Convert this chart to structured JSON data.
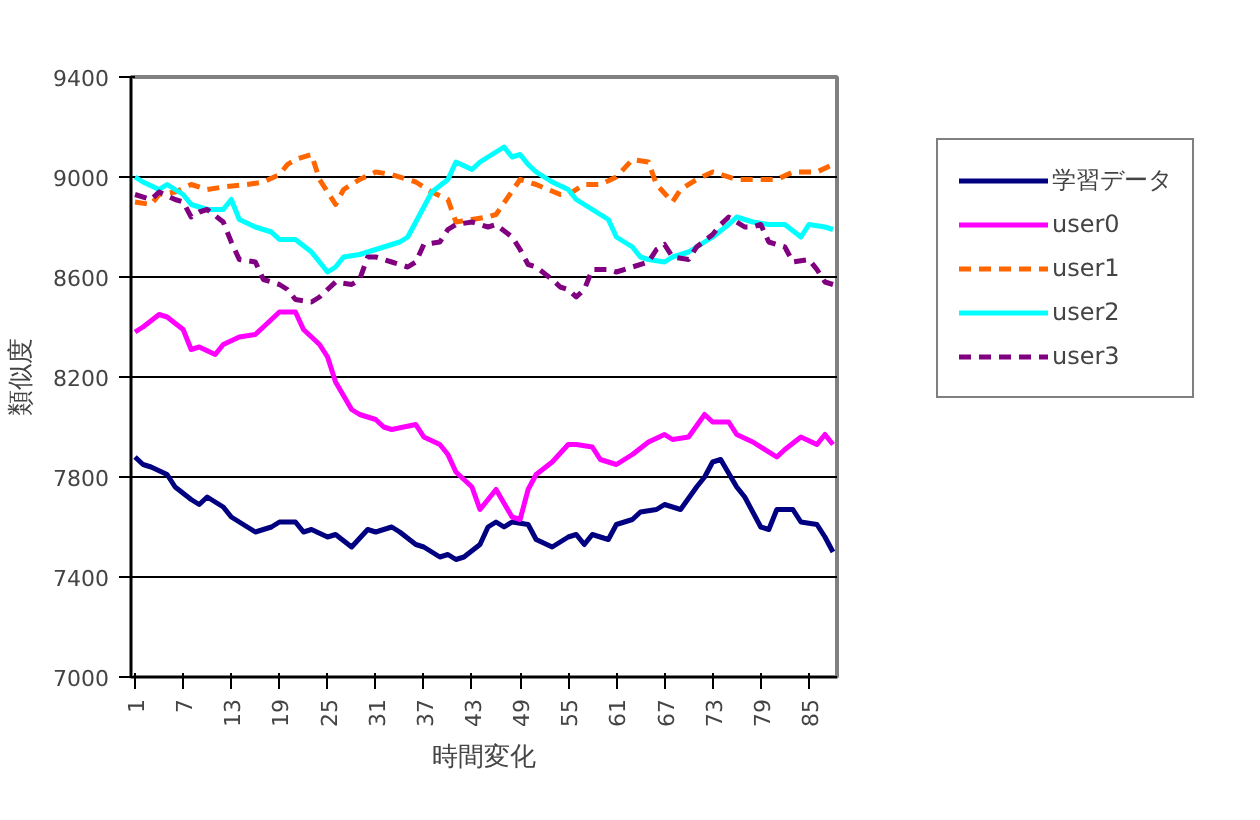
{
  "chart_data": {
    "type": "line",
    "xlabel": "時間変化",
    "ylabel": "類似度",
    "xlim": [
      0.5,
      88.5
    ],
    "xticks": [
      1,
      7,
      13,
      19,
      25,
      31,
      37,
      43,
      49,
      55,
      61,
      67,
      73,
      79,
      85
    ],
    "ylim": [
      7000,
      9400
    ],
    "yticks": [
      7000,
      7400,
      7800,
      8200,
      8600,
      9000,
      9400
    ],
    "grid": "y",
    "legend": "right",
    "series": [
      {
        "name": "学習データ",
        "color": "#000080",
        "line_style": "solid",
        "x": [
          1,
          2,
          3,
          5,
          6,
          8,
          9,
          10,
          12,
          13,
          15,
          16,
          18,
          19,
          21,
          22,
          23,
          25,
          26,
          28,
          30,
          31,
          33,
          34,
          36,
          37,
          39,
          40,
          41,
          42,
          44,
          45,
          46,
          47,
          48,
          50,
          51,
          53,
          55,
          56,
          57,
          58,
          60,
          61,
          63,
          64,
          66,
          67,
          69,
          71,
          72,
          73,
          74,
          76,
          77,
          79,
          80,
          81,
          83,
          84,
          86,
          87,
          88
        ],
        "values": [
          7880,
          7850,
          7840,
          7810,
          7760,
          7710,
          7690,
          7720,
          7680,
          7640,
          7600,
          7580,
          7600,
          7620,
          7620,
          7580,
          7590,
          7560,
          7570,
          7520,
          7590,
          7580,
          7600,
          7580,
          7530,
          7520,
          7480,
          7490,
          7470,
          7480,
          7530,
          7600,
          7620,
          7600,
          7620,
          7610,
          7550,
          7520,
          7560,
          7570,
          7530,
          7570,
          7550,
          7610,
          7630,
          7660,
          7670,
          7690,
          7670,
          7760,
          7800,
          7860,
          7870,
          7760,
          7720,
          7600,
          7590,
          7670,
          7670,
          7620,
          7610,
          7560,
          7500
        ]
      },
      {
        "name": "user0",
        "color": "#ff00ff",
        "line_style": "solid",
        "x": [
          1,
          2,
          4,
          5,
          7,
          8,
          9,
          11,
          12,
          14,
          16,
          17,
          19,
          21,
          22,
          24,
          25,
          26,
          28,
          29,
          31,
          32,
          33,
          36,
          37,
          39,
          40,
          41,
          43,
          44,
          46,
          48,
          49,
          50,
          51,
          53,
          55,
          56,
          58,
          59,
          61,
          63,
          65,
          67,
          68,
          70,
          72,
          73,
          75,
          76,
          78,
          81,
          82,
          84,
          86,
          87,
          88
        ],
        "values": [
          8380,
          8400,
          8450,
          8440,
          8390,
          8310,
          8320,
          8290,
          8330,
          8360,
          8370,
          8400,
          8460,
          8460,
          8390,
          8330,
          8280,
          8180,
          8070,
          8050,
          8030,
          8000,
          7990,
          8010,
          7960,
          7930,
          7890,
          7820,
          7760,
          7670,
          7750,
          7640,
          7630,
          7750,
          7810,
          7860,
          7930,
          7930,
          7920,
          7870,
          7850,
          7890,
          7940,
          7970,
          7950,
          7960,
          8050,
          8020,
          8020,
          7970,
          7940,
          7880,
          7910,
          7960,
          7930,
          7970,
          7930
        ]
      },
      {
        "name": "user1",
        "color": "#ff6600",
        "line_style": "dashed",
        "x": [
          1,
          3,
          4,
          6,
          8,
          10,
          12,
          15,
          17,
          19,
          20,
          21,
          23,
          24,
          26,
          27,
          29,
          31,
          33,
          35,
          36,
          38,
          40,
          41,
          43,
          45,
          46,
          49,
          50,
          51,
          54,
          55,
          57,
          59,
          61,
          63,
          65,
          66,
          68,
          69,
          71,
          73,
          76,
          78,
          81,
          83,
          86,
          88
        ],
        "values": [
          8900,
          8890,
          8930,
          8940,
          8970,
          8950,
          8960,
          8970,
          8980,
          9010,
          9050,
          9070,
          9090,
          8990,
          8890,
          8950,
          8990,
          9020,
          9010,
          8990,
          8980,
          8940,
          8910,
          8820,
          8830,
          8840,
          8850,
          8990,
          8980,
          8970,
          8930,
          8930,
          8970,
          8970,
          9000,
          9070,
          9060,
          8970,
          8900,
          8950,
          8990,
          9020,
          8990,
          8990,
          8990,
          9020,
          9020,
          9050
        ]
      },
      {
        "name": "user2",
        "color": "#00ffff",
        "line_style": "solid",
        "x": [
          1,
          2,
          4,
          5,
          7,
          8,
          10,
          12,
          13,
          14,
          16,
          18,
          19,
          21,
          23,
          24,
          25,
          26,
          27,
          29,
          31,
          32,
          34,
          35,
          36,
          38,
          40,
          41,
          43,
          44,
          46,
          47,
          48,
          49,
          50,
          51,
          53,
          55,
          56,
          58,
          60,
          61,
          63,
          64,
          65,
          67,
          68,
          70,
          72,
          73,
          75,
          76,
          78,
          80,
          82,
          84,
          85,
          87,
          88
        ],
        "values": [
          9000,
          8980,
          8950,
          8970,
          8930,
          8890,
          8870,
          8870,
          8910,
          8830,
          8800,
          8780,
          8750,
          8750,
          8700,
          8660,
          8620,
          8640,
          8680,
          8690,
          8710,
          8720,
          8740,
          8760,
          8820,
          8940,
          8990,
          9060,
          9030,
          9060,
          9100,
          9120,
          9080,
          9090,
          9050,
          9020,
          8980,
          8950,
          8910,
          8870,
          8830,
          8760,
          8720,
          8680,
          8670,
          8660,
          8680,
          8700,
          8740,
          8760,
          8810,
          8840,
          8820,
          8810,
          8810,
          8760,
          8810,
          8800,
          8790
        ]
      },
      {
        "name": "user3",
        "color": "#800080",
        "line_style": "dashed",
        "x": [
          1,
          3,
          4,
          6,
          7,
          8,
          9,
          10,
          12,
          13,
          14,
          16,
          17,
          19,
          20,
          21,
          23,
          24,
          26,
          28,
          29,
          30,
          31,
          33,
          35,
          36,
          37,
          39,
          40,
          41,
          43,
          45,
          46,
          48,
          49,
          50,
          51,
          53,
          54,
          55,
          56,
          57,
          58,
          60,
          61,
          63,
          65,
          66,
          67,
          68,
          70,
          71,
          73,
          74,
          75,
          77,
          78,
          79,
          80,
          82,
          83,
          85,
          86,
          87,
          88
        ],
        "values": [
          8930,
          8910,
          8940,
          8910,
          8900,
          8840,
          8860,
          8870,
          8820,
          8740,
          8670,
          8660,
          8590,
          8570,
          8550,
          8510,
          8500,
          8520,
          8580,
          8570,
          8590,
          8680,
          8680,
          8660,
          8640,
          8660,
          8730,
          8740,
          8790,
          8810,
          8820,
          8800,
          8810,
          8760,
          8710,
          8650,
          8640,
          8590,
          8560,
          8550,
          8520,
          8550,
          8630,
          8630,
          8620,
          8640,
          8660,
          8710,
          8730,
          8680,
          8670,
          8720,
          8770,
          8810,
          8840,
          8800,
          8800,
          8810,
          8740,
          8720,
          8660,
          8670,
          8630,
          8580,
          8570
        ]
      }
    ]
  }
}
